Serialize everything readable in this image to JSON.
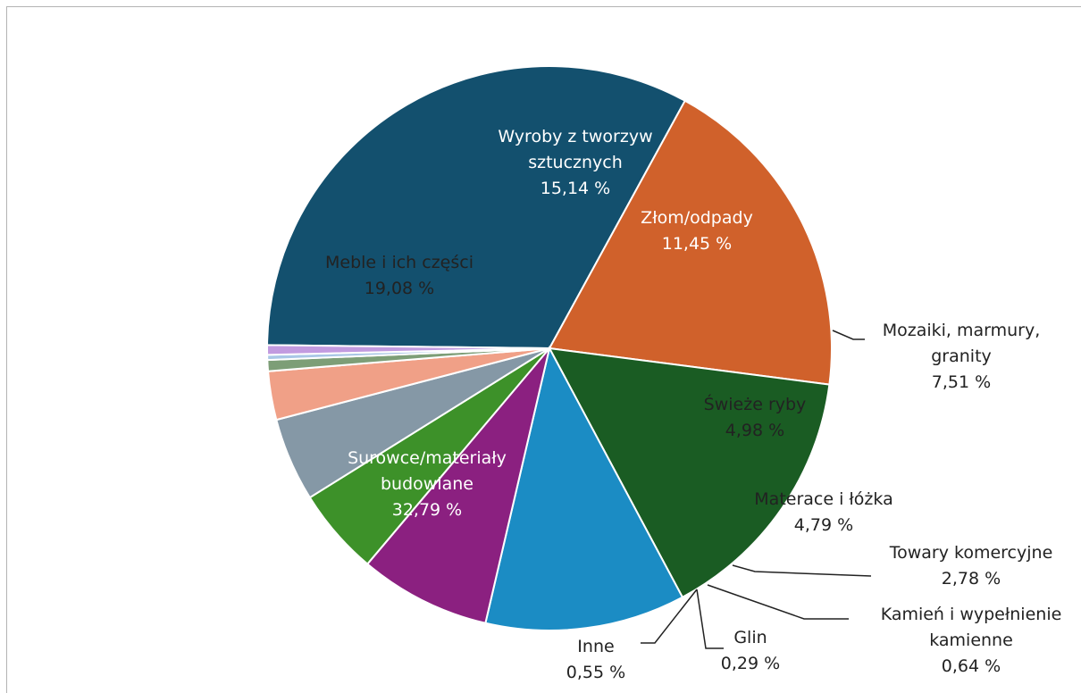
{
  "chart_data": {
    "type": "pie",
    "title": "",
    "legend": "none",
    "slices": [
      {
        "name": "Surowce/materiały budowlane",
        "label_lines": [
          "Surowce/materiały",
          "budowlane"
        ],
        "value": 32.79,
        "value_label": "32,79 %",
        "color": "#13506e"
      },
      {
        "name": "Meble i ich części",
        "label_lines": [
          "Meble i ich części"
        ],
        "value": 19.08,
        "value_label": "19,08 %",
        "color": "#d0612b"
      },
      {
        "name": "Wyroby z tworzyw sztucznych",
        "label_lines": [
          "Wyroby z tworzyw",
          "sztucznych"
        ],
        "value": 15.14,
        "value_label": "15,14  %",
        "color": "#1a5c23"
      },
      {
        "name": "Złom/odpady",
        "label_lines": [
          "Złom/odpady"
        ],
        "value": 11.45,
        "value_label": "11,45  %",
        "color": "#1b8cc4"
      },
      {
        "name": "Mozaiki, marmury, granity",
        "label_lines": [
          "Mozaiki,  marmury,",
          "granity"
        ],
        "value": 7.51,
        "value_label": "7,51 %",
        "color": "#8b2080"
      },
      {
        "name": "Świeże ryby",
        "label_lines": [
          "Świeże  ryby"
        ],
        "value": 4.98,
        "value_label": "4,98 %",
        "color": "#3d9129"
      },
      {
        "name": "Materace i łóżka",
        "label_lines": [
          "Materace  i łóżka"
        ],
        "value": 4.79,
        "value_label": "4,79 %",
        "color": "#8598a6"
      },
      {
        "name": "Towary komercyjne",
        "label_lines": [
          "Towary  komercyjne"
        ],
        "value": 2.78,
        "value_label": "2,78 %",
        "color": "#f0a087"
      },
      {
        "name": "Kamień i wypełnienie kamienne",
        "label_lines": [
          "Kamień  i wypełnienie",
          "kamienne"
        ],
        "value": 0.64,
        "value_label": "0,64 %",
        "color": "#7d9e77"
      },
      {
        "name": "Glin",
        "label_lines": [
          "Glin"
        ],
        "value": 0.29,
        "value_label": "0,29 %",
        "color": "#a9c7e6"
      },
      {
        "name": "Inne",
        "label_lines": [
          "Inne"
        ],
        "value": 0.55,
        "value_label": "0,55 %",
        "color": "#c29be0"
      }
    ]
  }
}
